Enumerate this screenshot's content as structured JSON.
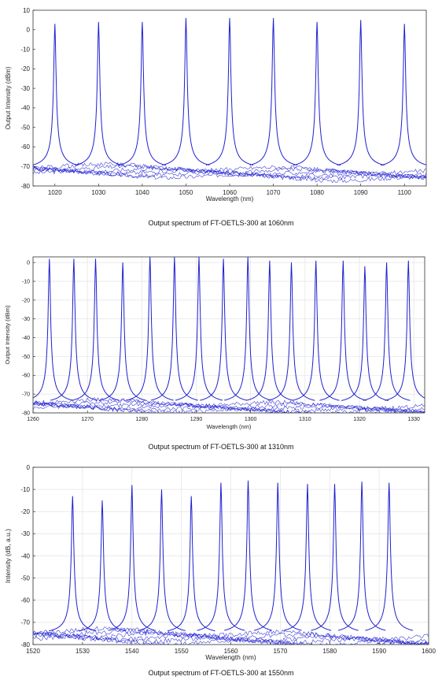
{
  "chart_data": [
    {
      "type": "line",
      "title": "",
      "caption": "Output spectrum of  FT-OETLS-300 at 1060nm",
      "xlabel": "Wavelength (nm)",
      "ylabel": "Output Intensity (dBm)",
      "xlim": [
        1015,
        1105
      ],
      "ylim": [
        -80,
        10
      ],
      "xticks": [
        1020,
        1030,
        1040,
        1050,
        1060,
        1070,
        1080,
        1090,
        1100
      ],
      "yticks": [
        10,
        0,
        -10,
        -20,
        -30,
        -40,
        -50,
        -60,
        -70,
        -80
      ],
      "grid": false,
      "line_color": "#1f1fd0",
      "noise_floor": -71,
      "peaks": [
        {
          "x": 1020,
          "y": 3
        },
        {
          "x": 1030,
          "y": 4
        },
        {
          "x": 1040,
          "y": 4
        },
        {
          "x": 1050,
          "y": 6
        },
        {
          "x": 1060,
          "y": 6
        },
        {
          "x": 1070,
          "y": 6
        },
        {
          "x": 1080,
          "y": 4
        },
        {
          "x": 1090,
          "y": 5
        },
        {
          "x": 1100,
          "y": 3
        }
      ]
    },
    {
      "type": "line",
      "title": "",
      "caption": "Output spectrum of  FT-OETLS-300 at 1310nm",
      "xlabel": "Wavelength (nm)",
      "ylabel": "Output Intensity (dBm)",
      "xlim": [
        1260,
        1332
      ],
      "ylim": [
        -80,
        3
      ],
      "xticks": [
        1260,
        1270,
        1280,
        1290,
        1300,
        1310,
        1320,
        1330
      ],
      "yticks": [
        0,
        -10,
        -20,
        -30,
        -40,
        -50,
        -60,
        -70,
        -80
      ],
      "grid": true,
      "line_color": "#1f1fd0",
      "noise_floor": -75,
      "peaks": [
        {
          "x": 1263,
          "y": 2
        },
        {
          "x": 1267.5,
          "y": 2
        },
        {
          "x": 1271.5,
          "y": 2
        },
        {
          "x": 1276.5,
          "y": 0
        },
        {
          "x": 1281.5,
          "y": 3
        },
        {
          "x": 1286,
          "y": 3
        },
        {
          "x": 1290.5,
          "y": 3
        },
        {
          "x": 1295,
          "y": 2
        },
        {
          "x": 1299.5,
          "y": 3
        },
        {
          "x": 1303.5,
          "y": 1
        },
        {
          "x": 1307.5,
          "y": 0
        },
        {
          "x": 1312,
          "y": 1
        },
        {
          "x": 1317,
          "y": 1
        },
        {
          "x": 1321,
          "y": -2
        },
        {
          "x": 1325,
          "y": 0
        },
        {
          "x": 1329,
          "y": 1
        }
      ]
    },
    {
      "type": "line",
      "title": "",
      "caption": "Output spectrum of  FT-OETLS-300 at 1550nm",
      "xlabel": "Wavelength (nm)",
      "ylabel": "Intensity (dB, a.u.)",
      "xlim": [
        1520,
        1600
      ],
      "ylim": [
        -80,
        0
      ],
      "xticks": [
        1520,
        1530,
        1540,
        1550,
        1560,
        1570,
        1580,
        1590,
        1600
      ],
      "yticks": [
        0,
        -10,
        -20,
        -30,
        -40,
        -50,
        -60,
        -70,
        -80
      ],
      "grid": true,
      "line_color": "#1f1fd0",
      "noise_floor": -75,
      "peaks": [
        {
          "x": 1528,
          "y": -13
        },
        {
          "x": 1534,
          "y": -15
        },
        {
          "x": 1540,
          "y": -8
        },
        {
          "x": 1546,
          "y": -10
        },
        {
          "x": 1552,
          "y": -13
        },
        {
          "x": 1558,
          "y": -7
        },
        {
          "x": 1563.5,
          "y": -6
        },
        {
          "x": 1569.5,
          "y": -7
        },
        {
          "x": 1575.5,
          "y": -7.5
        },
        {
          "x": 1581,
          "y": -7.5
        },
        {
          "x": 1586.5,
          "y": -6.5
        },
        {
          "x": 1592,
          "y": -7
        }
      ]
    }
  ]
}
